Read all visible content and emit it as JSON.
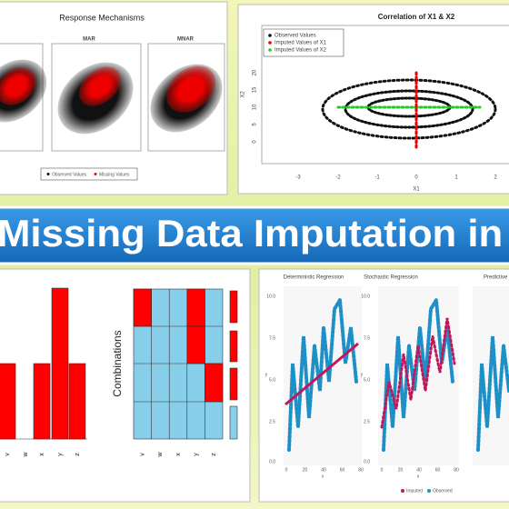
{
  "top_left": {
    "title": "Response Mechanisms",
    "panels": [
      "MAR",
      "MNAR"
    ],
    "legend": [
      "Observed Values",
      "Missing Values"
    ]
  },
  "top_right": {
    "title": "Correlation of X1 & X2",
    "legend": [
      "Observed Values",
      "Imputed Values of X1",
      "Imputed Values of X2"
    ],
    "x_label": "X1",
    "y_label": "X2",
    "x_ticks": [
      "-3",
      "-2",
      "-1",
      "0",
      "1",
      "2"
    ],
    "y_ticks": [
      "0",
      "5",
      "10",
      "15",
      "20"
    ]
  },
  "banner": {
    "text": "Missing Data Imputation in R"
  },
  "bottom_left": {
    "bars": {
      "categories": [
        "v",
        "w",
        "x",
        "y",
        "z"
      ],
      "values": [
        1,
        0,
        1,
        2,
        1
      ],
      "color": "#ff0000"
    },
    "combinations": {
      "label": "Combinations",
      "categories": [
        "v",
        "w",
        "x",
        "y",
        "z"
      ]
    }
  },
  "bottom_right": {
    "panels": [
      "Deterministic Regression",
      "Stochastic Regression",
      "Predictive"
    ],
    "y_ticks": [
      "0.0",
      "2.5",
      "5.0",
      "7.5",
      "10.0"
    ],
    "x_ticks": [
      "0",
      "20",
      "40",
      "60",
      "80"
    ],
    "x_label": "x",
    "y_label": "y",
    "legend": [
      "Imputed",
      "Observed"
    ]
  }
}
